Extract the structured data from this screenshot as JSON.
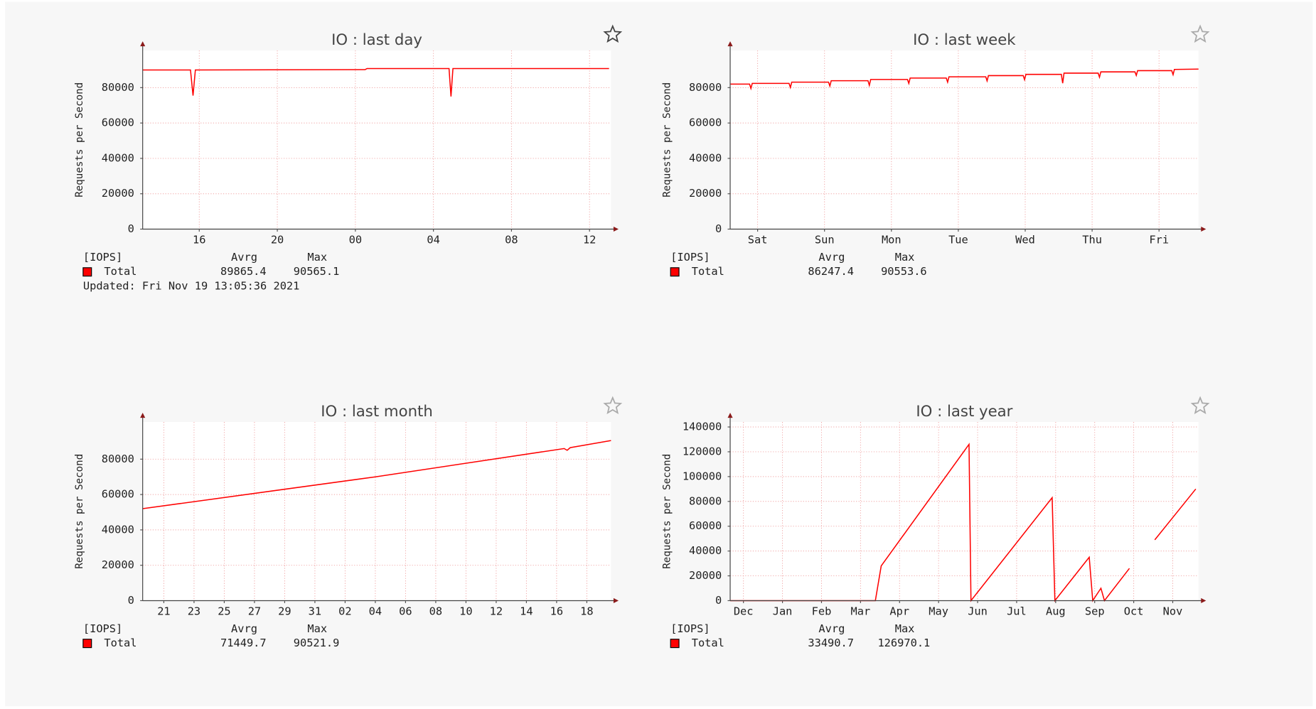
{
  "chart_data": [
    {
      "type": "line",
      "title": "IO : last day",
      "ylabel": "Requests per Second",
      "x": [
        13.1,
        15.55,
        15.68,
        15.8,
        24.5,
        24.6,
        28.8,
        28.9,
        29.0,
        37.0
      ],
      "series": [
        {
          "name": "Total",
          "color": "#ff0000",
          "values": [
            90000,
            90000,
            75500,
            90000,
            90200,
            90800,
            90800,
            75000,
            90800,
            90800
          ]
        }
      ],
      "xlim": [
        13.1,
        37.1
      ],
      "xticks": [
        16,
        20,
        {
          "value": 24,
          "label": "00"
        },
        {
          "value": 28,
          "label": "04"
        },
        {
          "value": 32,
          "label": "08"
        },
        {
          "value": 36,
          "label": "12"
        }
      ],
      "ylim": [
        0,
        101000
      ],
      "yticks": [
        0,
        20000,
        40000,
        60000,
        80000
      ],
      "grid": true,
      "legend_header": "[IOPS]",
      "stat_labels": [
        "Avrg",
        "Max"
      ],
      "stats": [
        89865.4,
        90565.1
      ],
      "updated": "Updated: Fri Nov 19 13:05:36 2021"
    },
    {
      "type": "line",
      "title": "IO : last week",
      "ylabel": "Requests per Second",
      "x": [
        -0.41,
        -0.12,
        -0.1,
        -0.08,
        0.47,
        0.49,
        0.51,
        1.06,
        1.08,
        1.1,
        1.65,
        1.67,
        1.69,
        2.24,
        2.26,
        2.28,
        2.82,
        2.84,
        2.86,
        3.41,
        3.43,
        3.45,
        3.97,
        3.99,
        4.01,
        4.54,
        4.56,
        4.58,
        5.09,
        5.11,
        5.13,
        5.64,
        5.66,
        5.68,
        6.19,
        6.21,
        6.23,
        6.59
      ],
      "series": [
        {
          "name": "Total",
          "color": "#ff0000",
          "values": [
            82000,
            82000,
            79500,
            82400,
            82400,
            80100,
            83100,
            83100,
            80900,
            83900,
            83900,
            81300,
            84600,
            84600,
            82400,
            85400,
            85400,
            83100,
            86100,
            86100,
            83800,
            86800,
            86800,
            84500,
            87500,
            87500,
            82500,
            88200,
            88200,
            85900,
            88900,
            88900,
            86900,
            89600,
            89600,
            87300,
            90300,
            90500
          ]
        }
      ],
      "xlim": [
        -0.41,
        6.59
      ],
      "xticks": [
        {
          "value": 0,
          "label": "Sat"
        },
        {
          "value": 1,
          "label": "Sun"
        },
        {
          "value": 2,
          "label": "Mon"
        },
        {
          "value": 3,
          "label": "Tue"
        },
        {
          "value": 4,
          "label": "Wed"
        },
        {
          "value": 5,
          "label": "Thu"
        },
        {
          "value": 6,
          "label": "Fri"
        }
      ],
      "ylim": [
        0,
        101000
      ],
      "yticks": [
        0,
        20000,
        40000,
        60000,
        80000
      ],
      "grid": true,
      "legend_header": "[IOPS]",
      "stat_labels": [
        "Avrg",
        "Max"
      ],
      "stats": [
        86247.4,
        90553.6
      ]
    },
    {
      "type": "line",
      "title": "IO : last month",
      "ylabel": "Requests per Second",
      "x": [
        19.6,
        35,
        47.5,
        47.7,
        47.9,
        50.6
      ],
      "series": [
        {
          "name": "Total",
          "color": "#ff0000",
          "values": [
            52000,
            70000,
            86000,
            85000,
            86500,
            90500
          ]
        }
      ],
      "xlim": [
        19.6,
        50.6
      ],
      "xticks": [
        21,
        23,
        25,
        27,
        29,
        31,
        {
          "value": 33,
          "label": "02"
        },
        {
          "value": 35,
          "label": "04"
        },
        {
          "value": 37,
          "label": "06"
        },
        {
          "value": 39,
          "label": "08"
        },
        {
          "value": 41,
          "label": "10"
        },
        {
          "value": 43,
          "label": "12"
        },
        {
          "value": 45,
          "label": "14"
        },
        {
          "value": 47,
          "label": "16"
        },
        {
          "value": 49,
          "label": "18"
        }
      ],
      "ylim": [
        0,
        101000
      ],
      "yticks": [
        0,
        20000,
        40000,
        60000,
        80000
      ],
      "grid": true,
      "legend_header": "[IOPS]",
      "stat_labels": [
        "Avrg",
        "Max"
      ],
      "stats": [
        71449.7,
        90521.9
      ]
    },
    {
      "type": "line",
      "title": "IO : last year",
      "ylabel": "Requests per Second",
      "x": [
        -0.34,
        3.38,
        3.53,
        5.78,
        5.83,
        7.91,
        7.98,
        8.86,
        8.95,
        9.16,
        9.25,
        9.89,
        10.2,
        10.54,
        11.59
      ],
      "series": [
        {
          "name": "Total",
          "color": "#ff0000",
          "values": [
            0,
            0,
            28000,
            126000,
            0,
            83000,
            0,
            35000,
            0,
            10000,
            0,
            26000,
            null,
            49000,
            90000
          ]
        }
      ],
      "xlim": [
        -0.34,
        11.66
      ],
      "xticks": [
        {
          "value": 0,
          "label": "Dec"
        },
        {
          "value": 1,
          "label": "Jan"
        },
        {
          "value": 2,
          "label": "Feb"
        },
        {
          "value": 3,
          "label": "Mar"
        },
        {
          "value": 4,
          "label": "Apr"
        },
        {
          "value": 5,
          "label": "May"
        },
        {
          "value": 6,
          "label": "Jun"
        },
        {
          "value": 7,
          "label": "Jul"
        },
        {
          "value": 8,
          "label": "Aug"
        },
        {
          "value": 9,
          "label": "Sep"
        },
        {
          "value": 10,
          "label": "Oct"
        },
        {
          "value": 11,
          "label": "Nov"
        }
      ],
      "ylim": [
        0,
        144000
      ],
      "yticks": [
        0,
        20000,
        40000,
        60000,
        80000,
        100000,
        120000,
        140000
      ],
      "grid": true,
      "legend_header": "[IOPS]",
      "stat_labels": [
        "Avrg",
        "Max"
      ],
      "stats": [
        33490.7,
        126970.1
      ]
    }
  ]
}
